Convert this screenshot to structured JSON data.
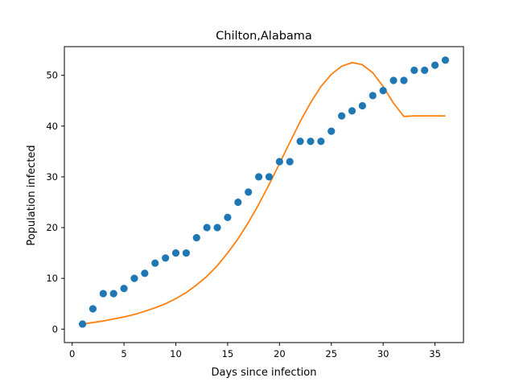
{
  "chart_data": {
    "type": "scatter",
    "title": "Chilton,Alabama",
    "xlabel": "Days since infection",
    "ylabel": "Population infected",
    "xlim": [
      -0.75,
      37.75
    ],
    "ylim": [
      -2.65,
      55.65
    ],
    "xticks": [
      0,
      5,
      10,
      15,
      20,
      25,
      30,
      35
    ],
    "yticks": [
      0,
      10,
      20,
      30,
      40,
      50
    ],
    "grid": false,
    "legend": "none",
    "colors": {
      "points": "#1f77b4",
      "fit": "#ff7f0e"
    },
    "series": [
      {
        "kind": "scatter",
        "x": [
          1,
          2,
          3,
          4,
          5,
          6,
          7,
          8,
          9,
          10,
          11,
          12,
          13,
          14,
          15,
          16,
          17,
          18,
          19,
          20,
          21,
          22,
          23,
          24,
          25,
          26,
          27,
          28,
          29,
          30,
          31,
          32,
          33,
          34,
          35,
          36
        ],
        "y": [
          1,
          4,
          7,
          7,
          8,
          10,
          11,
          13,
          14,
          15,
          15,
          18,
          20,
          20,
          22,
          25,
          27,
          30,
          30,
          33,
          33,
          37,
          37,
          37,
          39,
          42,
          43,
          44,
          46,
          47,
          49,
          49,
          51,
          51,
          52,
          53
        ]
      },
      {
        "kind": "line",
        "x": [
          1,
          2,
          3,
          4,
          5,
          6,
          7,
          8,
          9,
          10,
          11,
          12,
          13,
          14,
          15,
          16,
          17,
          18,
          19,
          20,
          21,
          22,
          23,
          24,
          25,
          26,
          27,
          28,
          29,
          30,
          31,
          32,
          33,
          34,
          35,
          36
        ],
        "y": [
          1.0,
          1.3,
          1.6,
          2.0,
          2.4,
          2.9,
          3.5,
          4.2,
          5.0,
          6.0,
          7.2,
          8.7,
          10.4,
          12.5,
          15.0,
          17.8,
          21.0,
          24.6,
          28.5,
          32.6,
          36.8,
          40.9,
          44.6,
          47.8,
          50.2,
          51.8,
          52.5,
          52.1,
          50.5,
          47.8,
          44.5,
          41.9,
          42.0,
          42.0,
          42.0,
          42.0
        ]
      }
    ]
  }
}
